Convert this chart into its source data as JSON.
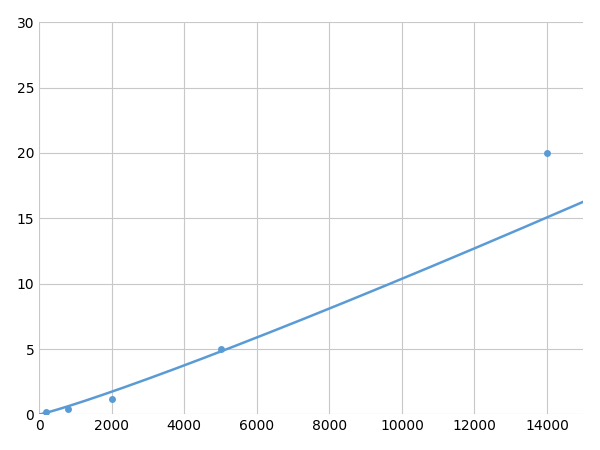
{
  "x_points": [
    200,
    800,
    2000,
    5000,
    14000
  ],
  "y_points": [
    0.2,
    0.45,
    1.2,
    5.0,
    20.0
  ],
  "line_color": "#5b9bd5",
  "marker_color": "#5b9bd5",
  "marker_size": 5,
  "line_width": 1.8,
  "xlim": [
    0,
    15000
  ],
  "ylim": [
    0,
    30
  ],
  "xticks": [
    0,
    2000,
    4000,
    6000,
    8000,
    10000,
    12000,
    14000
  ],
  "yticks": [
    0,
    5,
    10,
    15,
    20,
    25,
    30
  ],
  "grid_color": "#c8c8c8",
  "background_color": "#ffffff",
  "tick_labelsize": 10
}
